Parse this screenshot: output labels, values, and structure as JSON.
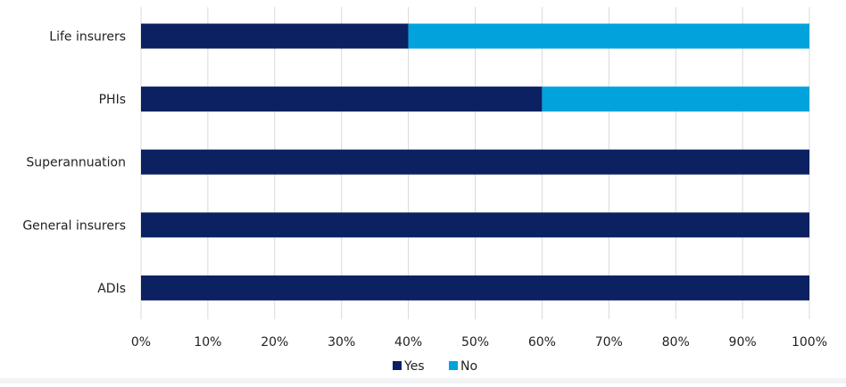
{
  "chart_data": {
    "type": "bar",
    "orientation": "horizontal",
    "stacked": true,
    "categories": [
      "Life insurers",
      "PHIs",
      "Superannuation",
      "General insurers",
      "ADIs"
    ],
    "series": [
      {
        "name": "Yes",
        "values": [
          40,
          60,
          100,
          100,
          100
        ],
        "color": "#0b2161"
      },
      {
        "name": "No",
        "values": [
          60,
          40,
          0,
          0,
          0
        ],
        "color": "#00a3dc"
      }
    ],
    "xlim": [
      0,
      100
    ],
    "xticks": [
      0,
      10,
      20,
      30,
      40,
      50,
      60,
      70,
      80,
      90,
      100
    ],
    "tick_labels": [
      "0%",
      "10%",
      "20%",
      "30%",
      "40%",
      "50%",
      "60%",
      "70%",
      "80%",
      "90%",
      "100%"
    ],
    "grid": true,
    "legend_position": "bottom-center",
    "title": "",
    "xlabel": "",
    "ylabel": ""
  },
  "colors": {
    "yes": "#0b2161",
    "no": "#00a3dc",
    "grid": "#d9d9d9"
  }
}
